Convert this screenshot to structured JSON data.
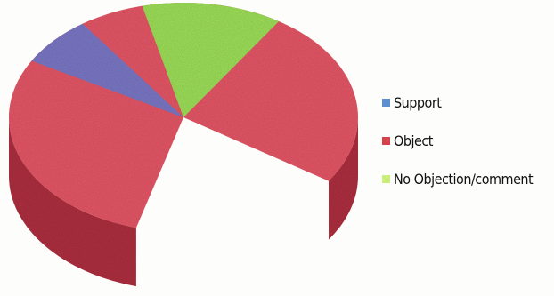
{
  "chart_data": {
    "type": "pie",
    "style": "3d",
    "categories": [
      "Support",
      "Object",
      "No Objection/comment"
    ],
    "values": [
      7,
      80,
      13
    ],
    "colors": [
      "#7c79c8",
      "#e85868",
      "#9fe25a"
    ],
    "side_colors": [
      "#1e2230",
      "#b03040",
      "#20242c"
    ],
    "legend": {
      "placement": "right",
      "items": [
        {
          "label": "Support",
          "color": "#5b8fd0"
        },
        {
          "label": "Object",
          "color": "#d8404a"
        },
        {
          "label": "No Objection/comment",
          "color": "#c9ef7a"
        }
      ]
    }
  }
}
